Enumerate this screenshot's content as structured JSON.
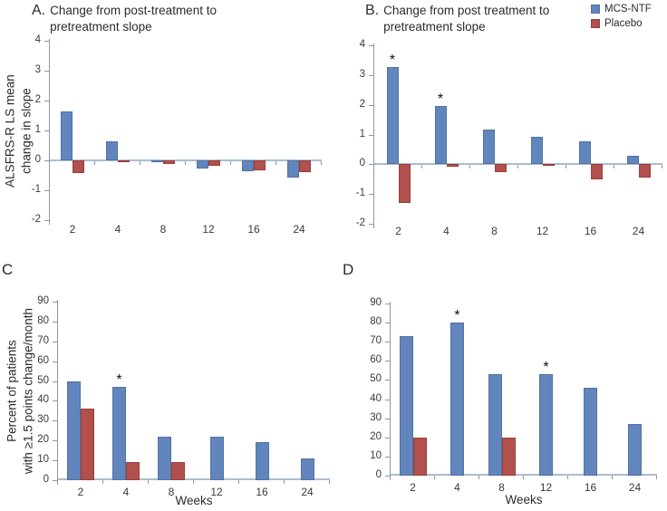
{
  "legend": {
    "items": [
      {
        "label": "MCS-NTF",
        "color": "#6285bd"
      },
      {
        "label": "Placebo",
        "color": "#b1504d"
      }
    ],
    "position": "top-right"
  },
  "colors": {
    "mcs_ntf_fill": "#6285bd",
    "mcs_ntf_border": "#50739f",
    "placebo_fill": "#b1504d",
    "placebo_border": "#9b3e3b",
    "axis": "#8d97a6",
    "zero_line": "#abbcd6"
  },
  "annotation_symbol": "*",
  "chart_data": [
    {
      "type": "bar",
      "panel_label": "A.",
      "title": "Change from post-treatment to pretreatment slope",
      "ylabel": "ALSFRS-R LS mean\nchange in slope",
      "xlabel": "",
      "categories": [
        2,
        4,
        8,
        12,
        16,
        24
      ],
      "ylim": [
        -2,
        4
      ],
      "yticks": [
        4,
        3,
        2,
        1,
        0,
        -1,
        -2
      ],
      "grid": false,
      "series": [
        {
          "name": "MCS-NTF",
          "values": [
            1.65,
            0.65,
            -0.07,
            -0.28,
            -0.37,
            -0.57
          ]
        },
        {
          "name": "Placebo",
          "values": [
            -0.42,
            -0.03,
            -0.12,
            -0.18,
            -0.33,
            -0.38
          ]
        }
      ],
      "starred_categories": []
    },
    {
      "type": "bar",
      "panel_label": "B.",
      "title": "Change from post treatment to pretreatment slope",
      "ylabel": "",
      "xlabel": "",
      "categories": [
        2,
        4,
        8,
        12,
        16,
        24
      ],
      "ylim": [
        -2,
        4
      ],
      "yticks": [
        4,
        3,
        2,
        1,
        0,
        -1,
        -2
      ],
      "grid": false,
      "series": [
        {
          "name": "MCS-NTF",
          "values": [
            3.27,
            1.97,
            1.17,
            0.93,
            0.77,
            0.27
          ]
        },
        {
          "name": "Placebo",
          "values": [
            -1.3,
            -0.07,
            -0.25,
            -0.03,
            -0.5,
            -0.45
          ]
        }
      ],
      "starred_categories": [
        2,
        4
      ]
    },
    {
      "type": "bar",
      "panel_label": "C",
      "title": "",
      "ylabel": "Percent of patients\nwith ≥1.5 points change/month",
      "xlabel": "Weeks",
      "categories": [
        2,
        4,
        8,
        12,
        16,
        24
      ],
      "ylim": [
        0,
        90
      ],
      "yticks": [
        90,
        80,
        70,
        60,
        50,
        40,
        30,
        20,
        10,
        0
      ],
      "grid": false,
      "series": [
        {
          "name": "MCS-NTF",
          "values": [
            50,
            47,
            22,
            22,
            19,
            11
          ]
        },
        {
          "name": "Placebo",
          "values": [
            36,
            9,
            9,
            null,
            null,
            null
          ]
        }
      ],
      "starred_categories": [
        4
      ]
    },
    {
      "type": "bar",
      "panel_label": "D",
      "title": "",
      "ylabel": "",
      "xlabel": "Weeks",
      "categories": [
        2,
        4,
        8,
        12,
        16,
        24
      ],
      "ylim": [
        0,
        90
      ],
      "yticks": [
        90,
        80,
        70,
        60,
        50,
        40,
        30,
        20,
        10,
        0
      ],
      "grid": false,
      "series": [
        {
          "name": "MCS-NTF",
          "values": [
            73,
            80,
            53,
            53,
            46,
            27
          ]
        },
        {
          "name": "Placebo",
          "values": [
            20,
            null,
            20,
            null,
            null,
            null
          ]
        }
      ],
      "starred_categories": [
        4,
        12
      ]
    }
  ]
}
